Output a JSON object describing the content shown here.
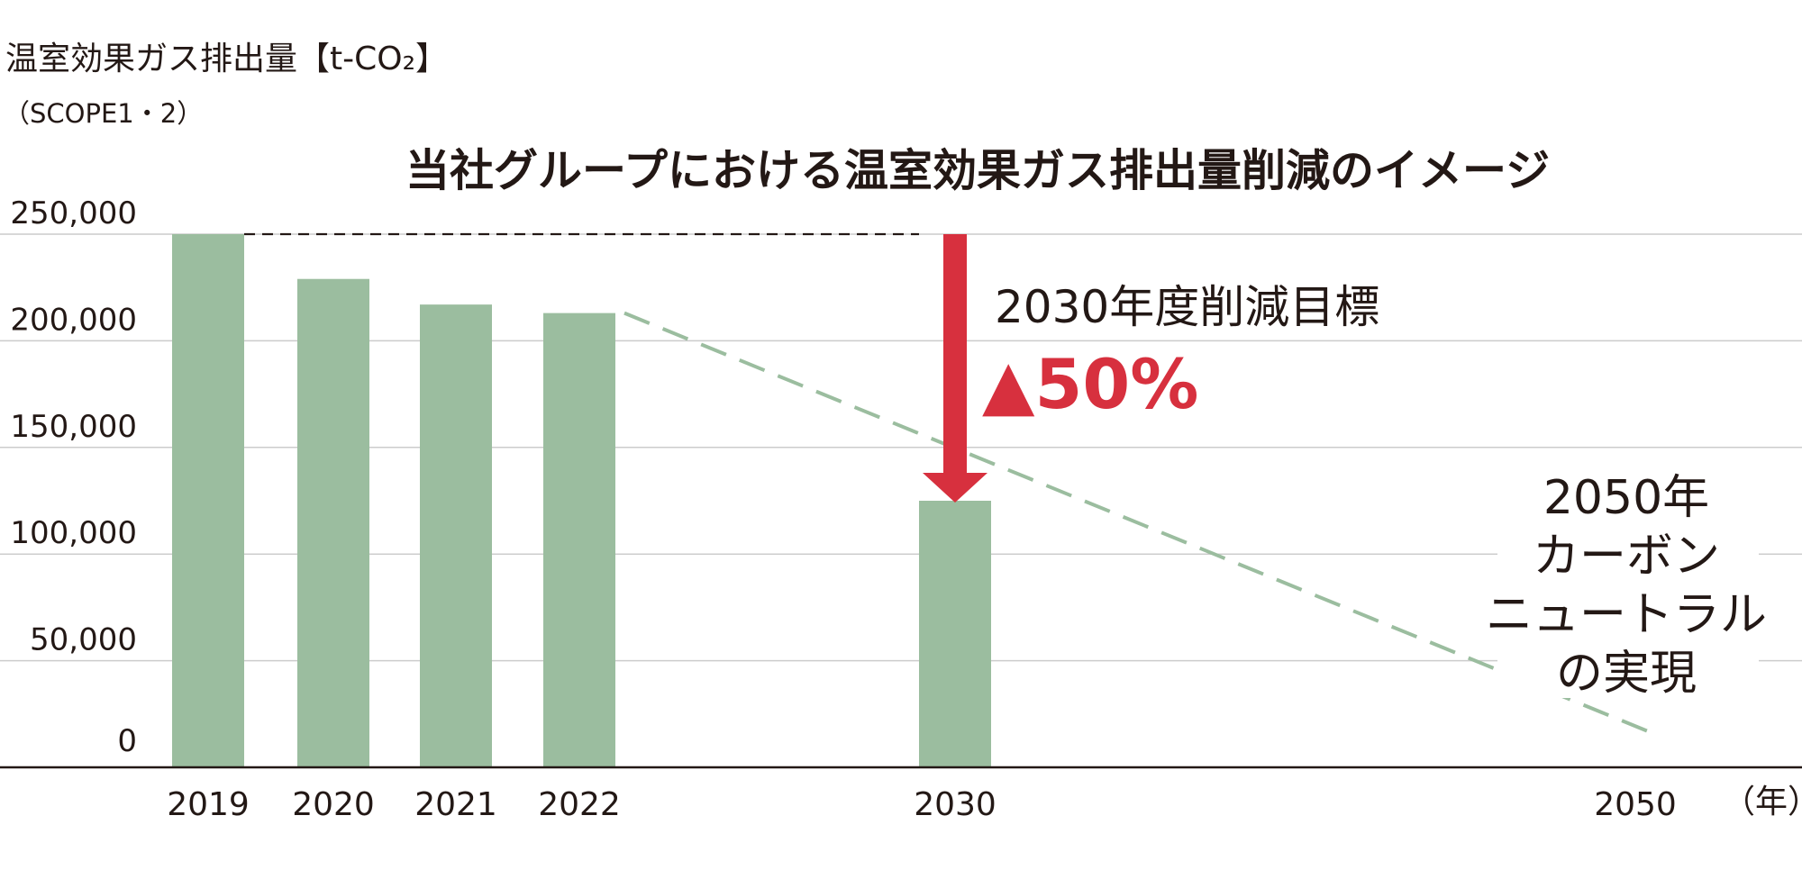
{
  "header": {
    "unit_label": "温室効果ガス排出量【t-CO₂】",
    "scope_label": "（SCOPE1・2）"
  },
  "chart_data": {
    "type": "bar",
    "title": "当社グループにおける温室効果ガス排出量削減のイメージ",
    "xlabel": "（年）",
    "ylabel": "温室効果ガス排出量【t-CO₂】",
    "ylim": [
      0,
      250000
    ],
    "yticks": [
      0,
      50000,
      100000,
      150000,
      200000,
      250000
    ],
    "ytick_labels": [
      "0",
      "50,000",
      "100,000",
      "150,000",
      "200,000",
      "250,000"
    ],
    "x_axis": [
      2019,
      2050
    ],
    "categories": [
      "2019",
      "2020",
      "2021",
      "2022",
      "2030"
    ],
    "x_labels": [
      "2019",
      "2020",
      "2021",
      "2022",
      "2030",
      "2050"
    ],
    "values": [
      250000,
      229000,
      217000,
      213000,
      125000
    ],
    "projection": {
      "x": [
        2022,
        2050
      ],
      "y": [
        213000,
        15000
      ]
    },
    "baseline_reference": {
      "from": "2019",
      "to": "2030",
      "value": 250000
    },
    "grid": true,
    "colors": {
      "bar": "#9bbd9f",
      "projection": "#9bbd9f",
      "arrow": "#d7303e",
      "grid": "#cccccc",
      "axis": "#231815"
    },
    "annotations": {
      "target_label": "2030年度削減目標",
      "reduction": "▲50%",
      "goal_2050": [
        "2050年",
        "カーボン",
        "ニュートラル",
        "の実現"
      ]
    }
  }
}
